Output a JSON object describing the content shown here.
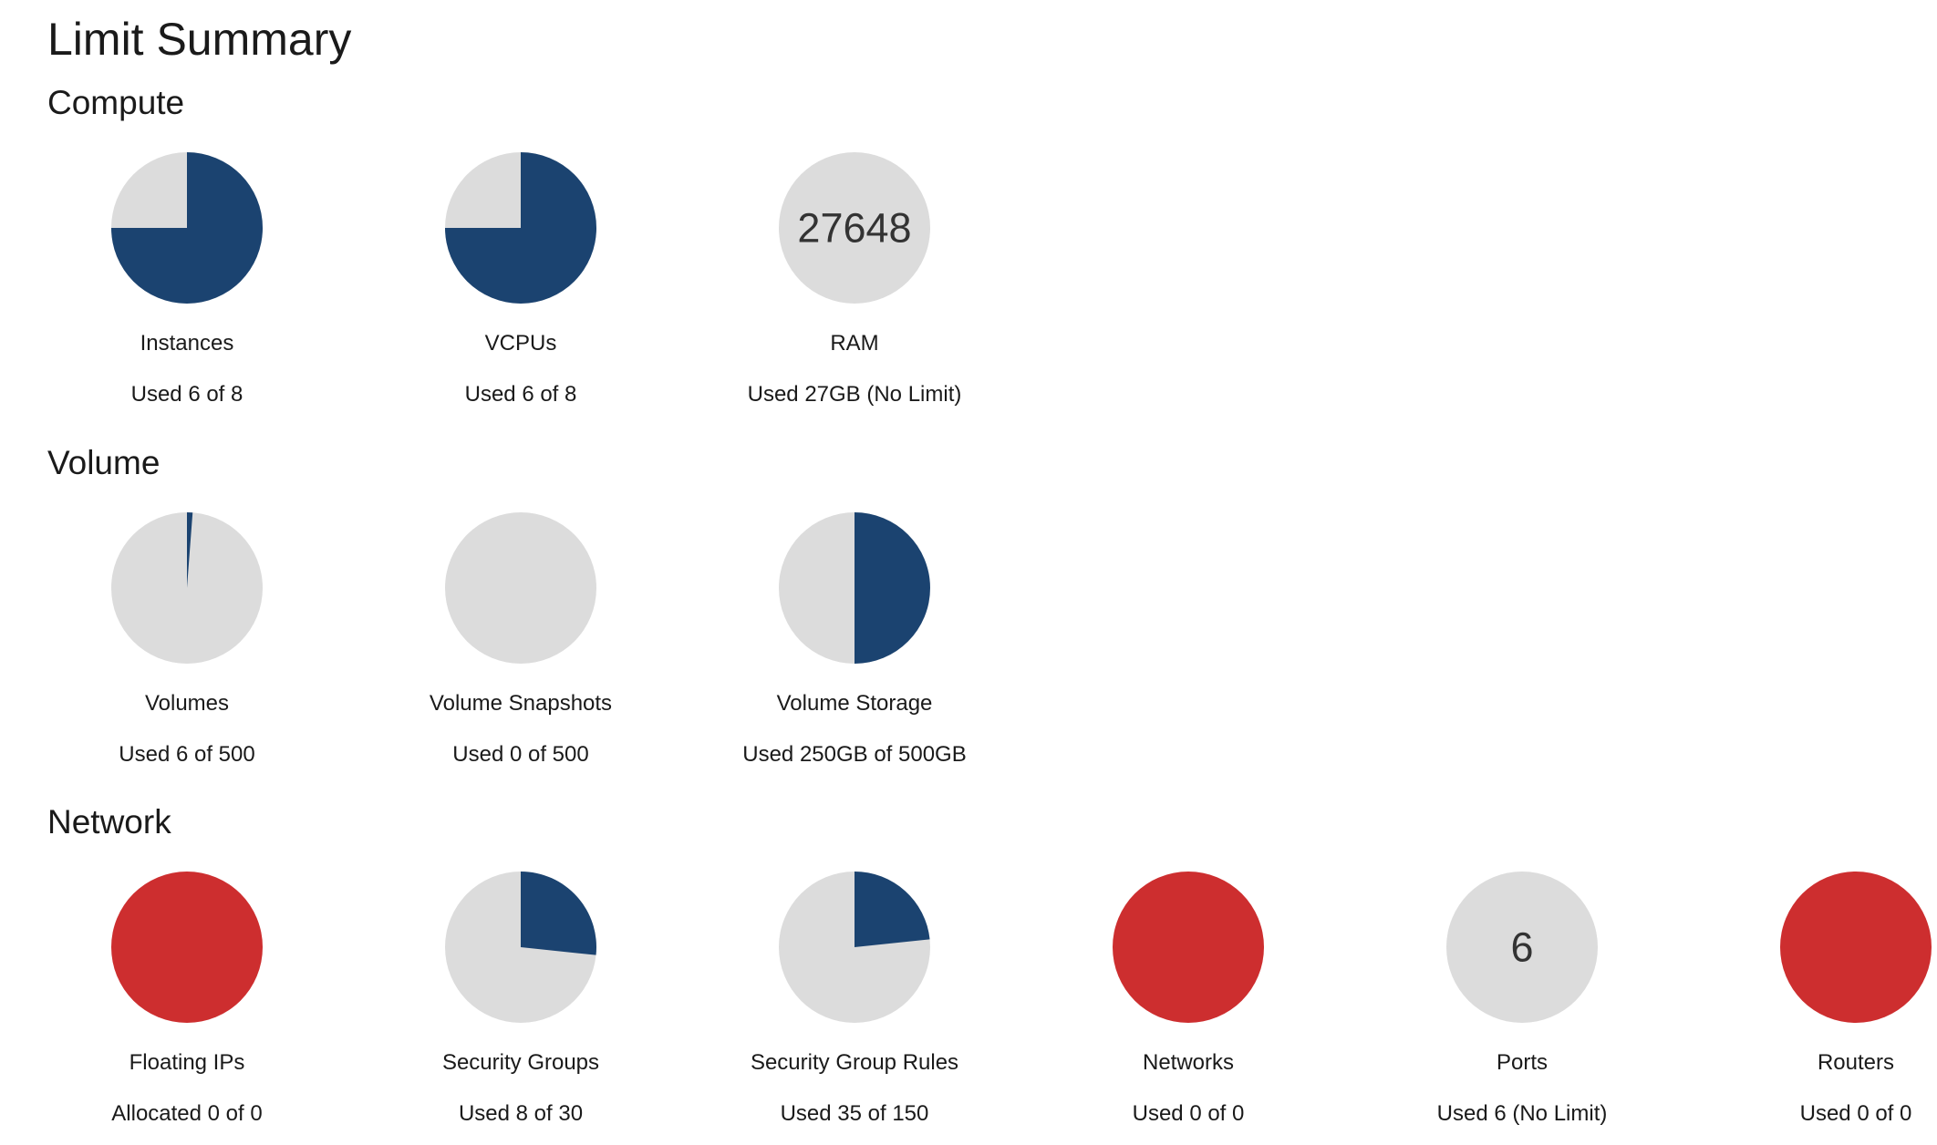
{
  "page_title": "Limit Summary",
  "colors": {
    "used": "#1b4370",
    "free": "#dcdcdc",
    "full": "#cd2e2f",
    "text": "#333333"
  },
  "sections": [
    {
      "title": "Compute",
      "charts": [
        {
          "label": "Instances",
          "usage": "Used 6 of 8",
          "used": 6,
          "limit": 8
        },
        {
          "label": "VCPUs",
          "usage": "Used 6 of 8",
          "used": 6,
          "limit": 8
        },
        {
          "label": "RAM",
          "usage": "Used 27GB (No Limit)",
          "used": 27648,
          "limit": null,
          "center_text": "27648"
        }
      ]
    },
    {
      "title": "Volume",
      "charts": [
        {
          "label": "Volumes",
          "usage": "Used 6 of 500",
          "used": 6,
          "limit": 500
        },
        {
          "label": "Volume Snapshots",
          "usage": "Used 0 of 500",
          "used": 0,
          "limit": 500
        },
        {
          "label": "Volume Storage",
          "usage": "Used 250GB of 500GB",
          "used": 250,
          "limit": 500
        }
      ]
    },
    {
      "title": "Network",
      "charts": [
        {
          "label": "Floating IPs",
          "usage": "Allocated 0 of 0",
          "used": 0,
          "limit": 0
        },
        {
          "label": "Security Groups",
          "usage": "Used 8 of 30",
          "used": 8,
          "limit": 30
        },
        {
          "label": "Security Group Rules",
          "usage": "Used 35 of 150",
          "used": 35,
          "limit": 150
        },
        {
          "label": "Networks",
          "usage": "Used 0 of 0",
          "used": 0,
          "limit": 0
        },
        {
          "label": "Ports",
          "usage": "Used 6 (No Limit)",
          "used": 6,
          "limit": null,
          "center_text": "6"
        },
        {
          "label": "Routers",
          "usage": "Used 0 of 0",
          "used": 0,
          "limit": 0
        }
      ]
    }
  ]
}
